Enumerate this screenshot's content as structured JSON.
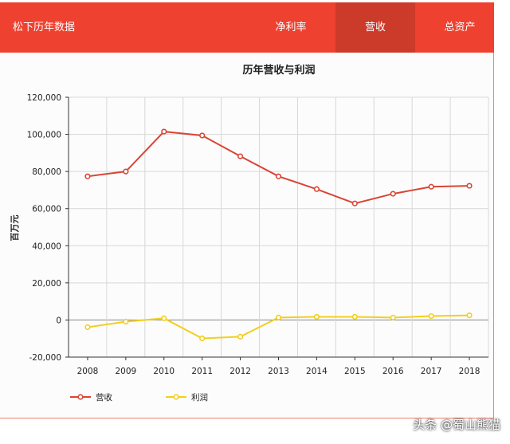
{
  "header": {
    "brand": "松下历年数据",
    "tabs": [
      {
        "label": "净利率"
      },
      {
        "label": "营收",
        "active": true
      },
      {
        "label": "总资产"
      }
    ]
  },
  "colors": {
    "header": "#ee4130",
    "active_tab": "#cc3a2a",
    "revenue": "#d94535",
    "profit": "#f2cf1d"
  },
  "watermark": "头条 @蜀山熊猫",
  "chart_data": {
    "type": "line",
    "title": "历年营收与利润",
    "ylabel": "百万元",
    "xlabel": "",
    "categories": [
      "2008",
      "2009",
      "2010",
      "2011",
      "2012",
      "2013",
      "2014",
      "2015",
      "2016",
      "2017",
      "2018"
    ],
    "ylim": [
      -20000,
      120000
    ],
    "yticks": [
      -20000,
      0,
      20000,
      40000,
      60000,
      80000,
      100000,
      120000
    ],
    "ytick_labels": [
      "-20,000",
      "0",
      "20,000",
      "40,000",
      "60,000",
      "80,000",
      "100,000",
      "120,000"
    ],
    "grid": true,
    "legend": "bottom-left",
    "series": [
      {
        "name": "营收",
        "color": "#d94535",
        "values": [
          77400,
          80000,
          101500,
          99400,
          88200,
          77400,
          70500,
          62800,
          68000,
          71800,
          72300
        ]
      },
      {
        "name": "利润",
        "color": "#f2cf1d",
        "values": [
          -3900,
          -900,
          900,
          -9900,
          -9000,
          1300,
          1700,
          1700,
          1300,
          2100,
          2500
        ]
      }
    ]
  }
}
